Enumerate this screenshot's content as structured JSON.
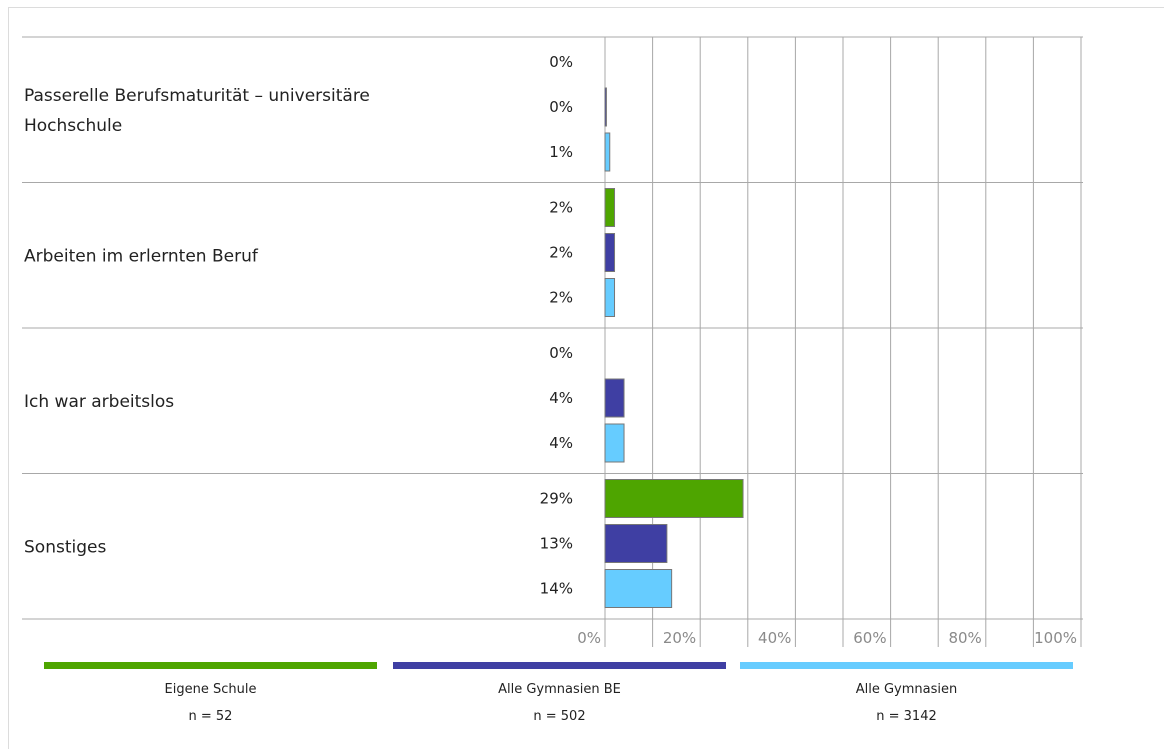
{
  "chart_data": {
    "type": "bar",
    "orientation": "horizontal",
    "categories": [
      [
        "Passerelle Berufsmaturität – universitäre",
        "Hochschule"
      ],
      [
        "Arbeiten im erlernten Beruf"
      ],
      [
        "Ich war arbeitslos"
      ],
      [
        "Sonstiges"
      ]
    ],
    "series": [
      {
        "name": "Eigene Schule",
        "n_label": "n = 52",
        "color": "#4ea500",
        "values": [
          0,
          2,
          0,
          29
        ],
        "labels": [
          "0%",
          "2%",
          "0%",
          "29%"
        ]
      },
      {
        "name": "Alle Gymnasien BE",
        "n_label": "n = 502",
        "color": "#3f3fa3",
        "values": [
          0.3,
          2,
          4,
          13
        ],
        "labels": [
          "0%",
          "2%",
          "4%",
          "13%"
        ]
      },
      {
        "name": "Alle Gymnasien",
        "n_label": "n = 3142",
        "color": "#66ccff",
        "values": [
          1,
          2,
          4,
          14
        ],
        "labels": [
          "1%",
          "2%",
          "4%",
          "14%"
        ]
      }
    ],
    "x_ticks": [
      "0%",
      "20%",
      "40%",
      "60%",
      "80%",
      "100%"
    ],
    "xlim": [
      0,
      100
    ],
    "grid": true,
    "legend_position": "bottom"
  }
}
